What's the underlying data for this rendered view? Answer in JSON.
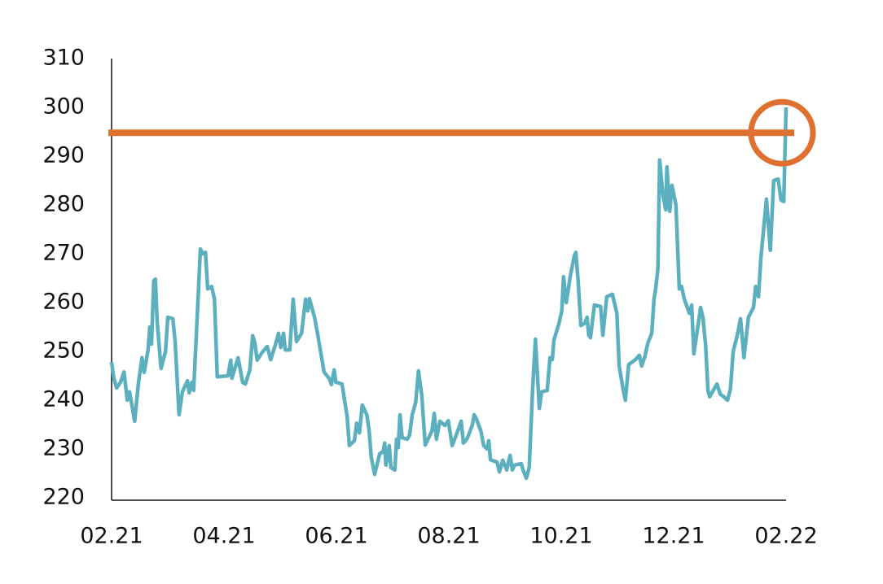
{
  "chart_data": {
    "type": "line",
    "color": "#5bafbf",
    "x": [
      0,
      0.04,
      0.09,
      0.16,
      0.22,
      0.28,
      0.32,
      0.41,
      0.48,
      0.54,
      0.58,
      0.65,
      0.68,
      0.71,
      0.75,
      0.78,
      0.81,
      0.88,
      0.96,
      1.0,
      1.09,
      1.13,
      1.2,
      1.26,
      1.35,
      1.38,
      1.43,
      1.46,
      1.54,
      1.58,
      1.62,
      1.67,
      1.71,
      1.78,
      1.83,
      1.88,
      2.07,
      2.12,
      2.14,
      2.25,
      2.33,
      2.38,
      2.46,
      2.51,
      2.55,
      2.59,
      2.68,
      2.77,
      2.83,
      2.91,
      2.97,
      3.01,
      3.06,
      3.09,
      3.17,
      3.23,
      3.29,
      3.38,
      3.45,
      3.49,
      3.52,
      3.61,
      3.67,
      3.78,
      3.88,
      3.91,
      3.96,
      3.99,
      4.1,
      4.19,
      4.23,
      4.32,
      4.36,
      4.41,
      4.46,
      4.54,
      4.58,
      4.62,
      4.68,
      4.77,
      4.83,
      4.86,
      4.88,
      4.94,
      4.97,
      5.04,
      5.07,
      5.1,
      5.13,
      5.17,
      5.26,
      5.3,
      5.35,
      5.41,
      5.46,
      5.52,
      5.58,
      5.7,
      5.74,
      5.78,
      5.84,
      5.93,
      5.99,
      6.06,
      6.13,
      6.22,
      6.26,
      6.32,
      6.38,
      6.42,
      6.45,
      6.49,
      6.57,
      6.62,
      6.68,
      6.71,
      6.74,
      6.86,
      6.9,
      6.96,
      7.03,
      7.09,
      7.13,
      7.17,
      7.29,
      7.32,
      7.38,
      7.43,
      7.49,
      7.54,
      7.61,
      7.65,
      7.75,
      7.8,
      7.84,
      7.87,
      7.96,
      8.01,
      8.04,
      8.09,
      8.16,
      8.23,
      8.26,
      8.3,
      8.35,
      8.42,
      8.46,
      8.49,
      8.52,
      8.59,
      8.7,
      8.74,
      8.81,
      8.91,
      8.99,
      9.03,
      9.1,
      9.14,
      9.2,
      9.32,
      9.39,
      9.43,
      9.49,
      9.54,
      9.61,
      9.65,
      9.68,
      9.72,
      9.75,
      9.81,
      9.86,
      9.88,
      9.93,
      9.97,
      10.04,
      10.1,
      10.14,
      10.19,
      10.28,
      10.32,
      10.36,
      10.48,
      10.52,
      10.57,
      10.61,
      10.64,
      10.77,
      10.83,
      10.88,
      10.96,
      11.01,
      11.06,
      11.13,
      11.19,
      11.25,
      11.33,
      11.42,
      11.46,
      11.51,
      11.55,
      11.61,
      11.65,
      11.72,
      11.78,
      11.86,
      11.91,
      11.96,
      12.0
    ],
    "values": [
      247.8,
      244.5,
      242.5,
      243.7,
      245.8,
      240,
      241.7,
      235.7,
      243.7,
      248.7,
      245.7,
      250.3,
      255,
      251.5,
      264.5,
      264.8,
      256.2,
      246.5,
      250,
      257,
      256.7,
      252,
      237,
      241.7,
      244,
      241.5,
      243.7,
      242,
      261.2,
      271,
      270,
      270.3,
      262.8,
      263.3,
      260.7,
      244.8,
      245,
      248.2,
      244.5,
      248.7,
      243.7,
      243.3,
      246.2,
      253.2,
      251.7,
      248.2,
      249.8,
      251,
      248.3,
      251.2,
      253.7,
      250.8,
      253.7,
      250.3,
      250.3,
      260.7,
      252,
      253.7,
      260.7,
      258.3,
      260.8,
      257,
      253.3,
      245.8,
      244.3,
      243.2,
      246.2,
      243.7,
      243.3,
      236.7,
      230.7,
      231.7,
      235.3,
      233.3,
      239,
      237,
      234,
      228.3,
      224.8,
      229,
      229.5,
      231.2,
      226.7,
      230.7,
      226.2,
      225.7,
      232,
      230.3,
      237,
      232.3,
      232,
      232.8,
      237,
      239.5,
      246,
      240.8,
      230.8,
      233.7,
      237.3,
      232,
      235.7,
      234.8,
      235.8,
      230.7,
      232.8,
      235.7,
      231.2,
      232,
      233.7,
      235,
      237,
      236.2,
      233.7,
      230.7,
      230,
      231.7,
      227.8,
      227.3,
      225.3,
      227.7,
      225.7,
      228.7,
      225.7,
      226.7,
      227,
      225.7,
      224,
      226.2,
      242,
      252.5,
      238.3,
      241.7,
      242,
      248.7,
      248.3,
      252.3,
      255.7,
      258.3,
      265.3,
      260,
      265.3,
      269.5,
      270.3,
      264.5,
      255.3,
      255.8,
      257,
      253.3,
      252.8,
      259.5,
      259.2,
      253.3,
      261.2,
      261.7,
      257.8,
      247,
      242.3,
      240,
      247.3,
      248.3,
      249.2,
      247,
      249,
      251.7,
      253.7,
      260.7,
      262.8,
      267,
      289.2,
      282,
      279,
      287.8,
      278.7,
      284,
      280,
      262.8,
      263.3,
      260.7,
      257.8,
      259.5,
      249.5,
      259,
      257,
      251.2,
      242,
      240.7,
      243.3,
      241.2,
      240.8,
      240,
      242.3,
      250,
      253.2,
      256.7,
      248.7,
      257,
      259,
      263.3,
      261.2,
      269,
      276.2,
      281.2,
      270.7,
      285,
      285.3,
      281,
      280.7,
      300
    ],
    "xlim": [
      0,
      12
    ],
    "xticks": [
      {
        "value": 0,
        "label": "02.21"
      },
      {
        "value": 2,
        "label": "04.21"
      },
      {
        "value": 4,
        "label": "06.21"
      },
      {
        "value": 6,
        "label": "08.21"
      },
      {
        "value": 8,
        "label": "10.21"
      },
      {
        "value": 10,
        "label": "12.21"
      },
      {
        "value": 12,
        "label": "02.22"
      }
    ],
    "ylim": [
      220,
      310
    ],
    "yticks": [
      220,
      230,
      240,
      250,
      260,
      270,
      280,
      290,
      300,
      310
    ],
    "reference_line": {
      "value": 294.8,
      "color": "#e07030"
    }
  }
}
